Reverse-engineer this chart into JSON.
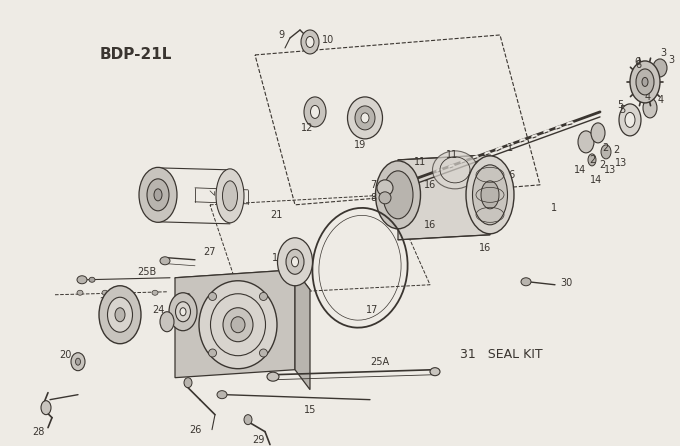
{
  "title": "BDP-21L",
  "bg_color": "#eeebe5",
  "line_color": "#3a3530",
  "seal_kit_label": "31   SEAL KIT",
  "figsize": [
    6.8,
    4.46
  ],
  "dpi": 100
}
